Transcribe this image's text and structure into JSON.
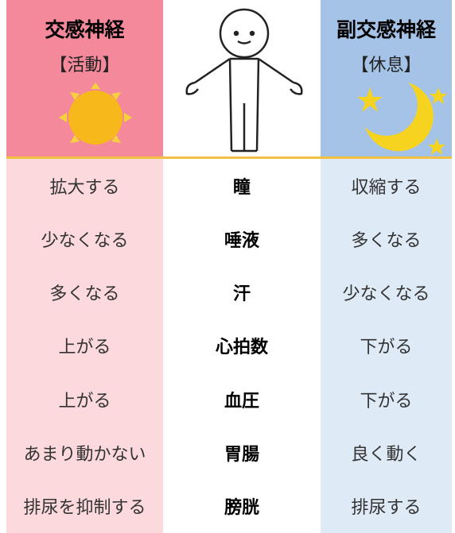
{
  "header": {
    "left": {
      "title": "交感神経",
      "subtitle": "【活動】"
    },
    "right": {
      "title": "副交感神経",
      "subtitle": "【休息】"
    }
  },
  "table": {
    "rows": [
      [
        "拡大する",
        "瞳",
        "収縮する"
      ],
      [
        "少なくなる",
        "唾液",
        "多くなる"
      ],
      [
        "多くなる",
        "汗",
        "少なくなる"
      ],
      [
        "上がる",
        "心拍数",
        "下がる"
      ],
      [
        "上がる",
        "血圧",
        "下がる"
      ],
      [
        "あまり動かない",
        "胃腸",
        "良く動く"
      ],
      [
        "排尿を抑制する",
        "膀胱",
        "排尿する"
      ]
    ]
  }
}
